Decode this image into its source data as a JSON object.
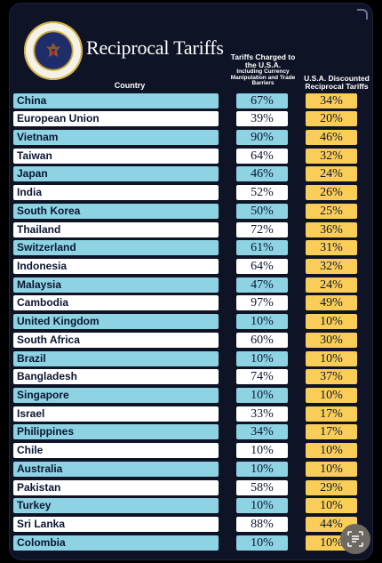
{
  "header": {
    "title": "Reciprocal Tariffs",
    "col_country": "Country",
    "col_charged_main": "Tariffs Charged to the U.S.A.",
    "col_charged_sub": "Including Currency Manipulation and Trade Barriers",
    "col_discounted": "U.S.A. Discounted Reciprocal Tariffs"
  },
  "colors": {
    "background": "#0f1326",
    "row_blue": "#8dd3e3",
    "row_white": "#ffffff",
    "discount_yellow": "#f9cd57",
    "text_dark": "#0b1631"
  },
  "icons": {
    "seal": "presidential-seal-icon",
    "scan": "scan-text-icon"
  },
  "rows": [
    {
      "country": "China",
      "charged": "67%",
      "discounted": "34%"
    },
    {
      "country": "European Union",
      "charged": "39%",
      "discounted": "20%"
    },
    {
      "country": "Vietnam",
      "charged": "90%",
      "discounted": "46%"
    },
    {
      "country": "Taiwan",
      "charged": "64%",
      "discounted": "32%"
    },
    {
      "country": "Japan",
      "charged": "46%",
      "discounted": "24%"
    },
    {
      "country": "India",
      "charged": "52%",
      "discounted": "26%"
    },
    {
      "country": "South Korea",
      "charged": "50%",
      "discounted": "25%"
    },
    {
      "country": "Thailand",
      "charged": "72%",
      "discounted": "36%"
    },
    {
      "country": "Switzerland",
      "charged": "61%",
      "discounted": "31%"
    },
    {
      "country": "Indonesia",
      "charged": "64%",
      "discounted": "32%"
    },
    {
      "country": "Malaysia",
      "charged": "47%",
      "discounted": "24%"
    },
    {
      "country": "Cambodia",
      "charged": "97%",
      "discounted": "49%"
    },
    {
      "country": "United Kingdom",
      "charged": "10%",
      "discounted": "10%"
    },
    {
      "country": "South Africa",
      "charged": "60%",
      "discounted": "30%"
    },
    {
      "country": "Brazil",
      "charged": "10%",
      "discounted": "10%"
    },
    {
      "country": "Bangladesh",
      "charged": "74%",
      "discounted": "37%"
    },
    {
      "country": "Singapore",
      "charged": "10%",
      "discounted": "10%"
    },
    {
      "country": "Israel",
      "charged": "33%",
      "discounted": "17%"
    },
    {
      "country": "Philippines",
      "charged": "34%",
      "discounted": "17%"
    },
    {
      "country": "Chile",
      "charged": "10%",
      "discounted": "10%"
    },
    {
      "country": "Australia",
      "charged": "10%",
      "discounted": "10%"
    },
    {
      "country": "Pakistan",
      "charged": "58%",
      "discounted": "29%"
    },
    {
      "country": "Turkey",
      "charged": "10%",
      "discounted": "10%"
    },
    {
      "country": "Sri Lanka",
      "charged": "88%",
      "discounted": "44%"
    },
    {
      "country": "Colombia",
      "charged": "10%",
      "discounted": "10%"
    }
  ]
}
